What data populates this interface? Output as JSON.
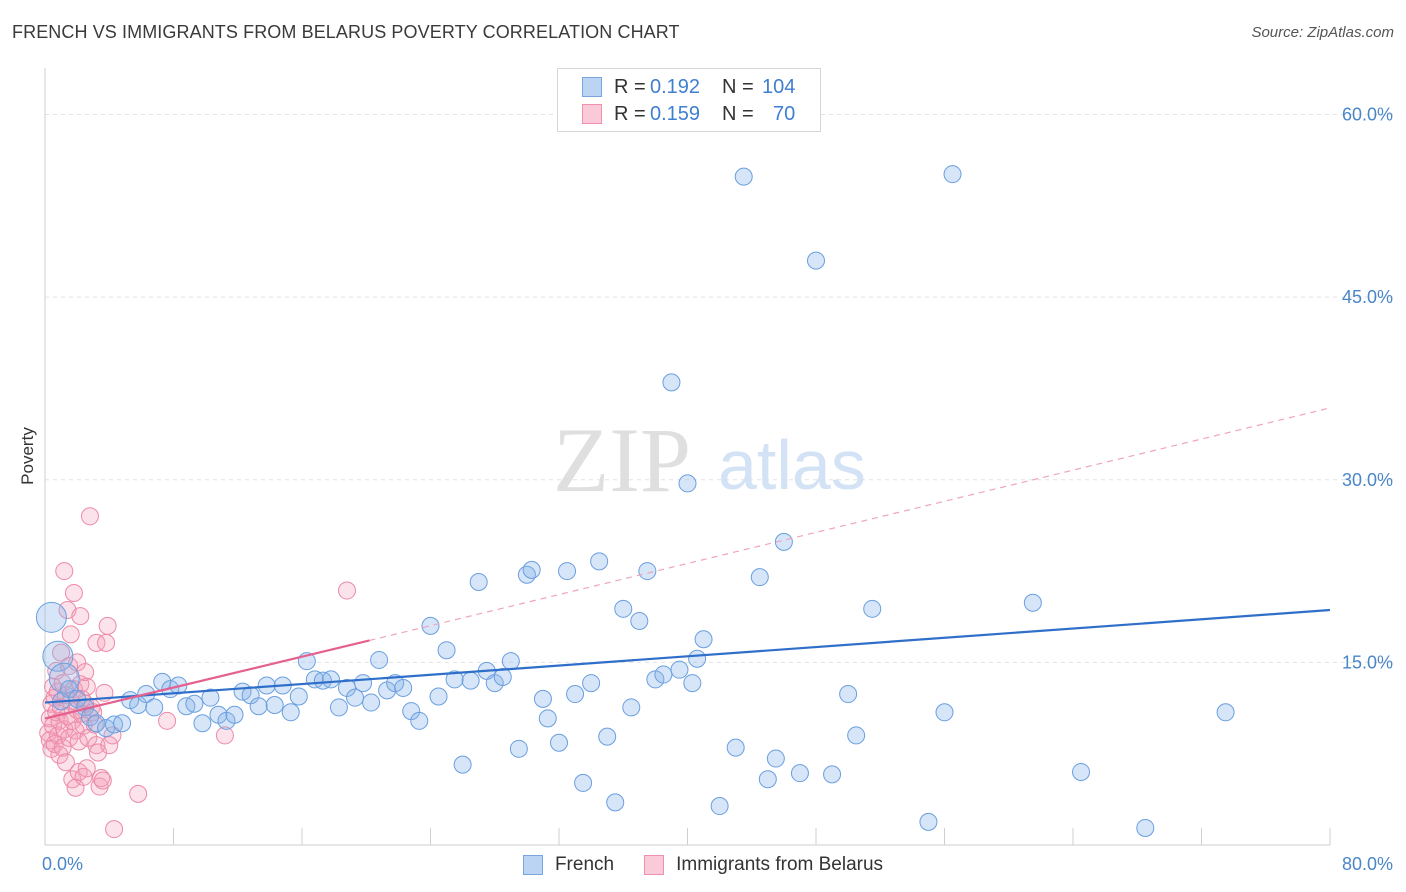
{
  "header": {
    "title": "FRENCH VS IMMIGRANTS FROM BELARUS POVERTY CORRELATION CHART",
    "source": "Source: ZipAtlas.com"
  },
  "watermark": {
    "zip": "ZIP",
    "atlas": "atlas"
  },
  "legend_top": {
    "rows": [
      {
        "r_label": "R =",
        "r_value": "0.192",
        "n_label": "N =",
        "n_value": "104",
        "color": "#8fb8ea"
      },
      {
        "r_label": "R =",
        "r_value": "0.159",
        "n_label": "N =",
        "n_value": "70",
        "color": "#f4a9be"
      }
    ]
  },
  "legend_bottom": {
    "items": [
      {
        "label": "French",
        "color": "#8fb8ea"
      },
      {
        "label": "Immigrants from Belarus",
        "color": "#f4a9be"
      }
    ]
  },
  "colors": {
    "french_fill": "rgba(138,180,232,0.35)",
    "french_stroke": "#6a9fe0",
    "french_line": "#2f6fca",
    "belarus_fill": "rgba(244,160,186,0.3)",
    "belarus_stroke": "#ec8aa8",
    "belarus_line": "#e4608e",
    "tick_text": "#4a86c8"
  },
  "chart_data": {
    "type": "scatter",
    "title": "FRENCH VS IMMIGRANTS FROM BELARUS POVERTY CORRELATION CHART",
    "xlabel": "",
    "ylabel": "Poverty",
    "xlim": [
      0,
      80
    ],
    "ylim": [
      0,
      63
    ],
    "x_tick_labels": [
      {
        "value": 0,
        "label": "0.0%"
      },
      {
        "value": 80,
        "label": "80.0%"
      }
    ],
    "x_minor_ticks": [
      0,
      8,
      16,
      24,
      32,
      40,
      48,
      56,
      64,
      72,
      80
    ],
    "y_ticks": [
      {
        "value": 15,
        "label": "15.0%"
      },
      {
        "value": 30,
        "label": "30.0%"
      },
      {
        "value": 45,
        "label": "45.0%"
      },
      {
        "value": 60,
        "label": "60.0%"
      }
    ],
    "grid": "horizontal dashed",
    "legend_placement": "top-center",
    "series": [
      {
        "name": "French",
        "R": 0.192,
        "N": 104,
        "trend": {
          "x1": 0,
          "y1": 11.7,
          "x2": 80,
          "y2": 19.3,
          "style": "solid"
        },
        "points": [
          [
            0.4,
            18.7
          ],
          [
            0.8,
            15.5
          ],
          [
            1.2,
            13.7
          ],
          [
            1.0,
            11.8
          ],
          [
            1.5,
            12.8
          ],
          [
            2.0,
            12.0
          ],
          [
            2.5,
            11.3
          ],
          [
            2.8,
            10.5
          ],
          [
            3.2,
            10.0
          ],
          [
            3.8,
            9.6
          ],
          [
            4.3,
            9.9
          ],
          [
            4.8,
            10.0
          ],
          [
            5.3,
            11.9
          ],
          [
            5.8,
            11.5
          ],
          [
            6.3,
            12.4
          ],
          [
            6.8,
            11.3
          ],
          [
            7.3,
            13.4
          ],
          [
            7.8,
            12.8
          ],
          [
            8.3,
            13.1
          ],
          [
            8.8,
            11.4
          ],
          [
            9.3,
            11.6
          ],
          [
            9.8,
            10.0
          ],
          [
            10.3,
            12.1
          ],
          [
            10.8,
            10.7
          ],
          [
            11.3,
            10.2
          ],
          [
            11.8,
            10.7
          ],
          [
            12.3,
            12.6
          ],
          [
            12.8,
            12.3
          ],
          [
            13.3,
            11.4
          ],
          [
            13.8,
            13.1
          ],
          [
            14.3,
            11.5
          ],
          [
            14.8,
            13.1
          ],
          [
            15.3,
            10.9
          ],
          [
            15.8,
            12.2
          ],
          [
            16.3,
            15.1
          ],
          [
            16.8,
            13.6
          ],
          [
            17.3,
            13.5
          ],
          [
            17.8,
            13.6
          ],
          [
            18.3,
            11.3
          ],
          [
            18.8,
            12.9
          ],
          [
            19.3,
            12.1
          ],
          [
            19.8,
            13.3
          ],
          [
            20.3,
            11.7
          ],
          [
            20.8,
            15.2
          ],
          [
            21.3,
            12.7
          ],
          [
            21.8,
            13.3
          ],
          [
            22.3,
            12.9
          ],
          [
            22.8,
            11.0
          ],
          [
            23.3,
            10.2
          ],
          [
            24.0,
            18.0
          ],
          [
            24.5,
            12.2
          ],
          [
            25.0,
            16.0
          ],
          [
            25.5,
            13.6
          ],
          [
            26.0,
            6.6
          ],
          [
            26.5,
            13.5
          ],
          [
            27.0,
            21.6
          ],
          [
            27.5,
            14.3
          ],
          [
            28.0,
            13.3
          ],
          [
            28.5,
            13.8
          ],
          [
            29.0,
            15.1
          ],
          [
            29.5,
            7.9
          ],
          [
            30.0,
            22.2
          ],
          [
            30.3,
            22.6
          ],
          [
            31.0,
            12.0
          ],
          [
            31.3,
            10.4
          ],
          [
            32.0,
            8.4
          ],
          [
            32.5,
            22.5
          ],
          [
            33.0,
            12.4
          ],
          [
            33.5,
            5.1
          ],
          [
            34.0,
            13.3
          ],
          [
            34.5,
            23.3
          ],
          [
            35.0,
            8.9
          ],
          [
            35.5,
            3.5
          ],
          [
            36.0,
            19.4
          ],
          [
            36.5,
            11.3
          ],
          [
            37.0,
            18.4
          ],
          [
            37.5,
            22.5
          ],
          [
            38.0,
            13.6
          ],
          [
            38.5,
            14.0
          ],
          [
            39.0,
            38.0
          ],
          [
            39.5,
            14.4
          ],
          [
            40.0,
            29.7
          ],
          [
            40.3,
            13.3
          ],
          [
            40.6,
            15.3
          ],
          [
            41.0,
            16.9
          ],
          [
            42.0,
            3.2
          ],
          [
            43.0,
            8.0
          ],
          [
            43.5,
            54.9
          ],
          [
            44.5,
            22.0
          ],
          [
            45.0,
            5.4
          ],
          [
            45.5,
            7.1
          ],
          [
            46.0,
            24.9
          ],
          [
            47.0,
            5.9
          ],
          [
            48.0,
            48.0
          ],
          [
            49.0,
            5.8
          ],
          [
            50.0,
            12.4
          ],
          [
            50.5,
            9.0
          ],
          [
            51.5,
            19.4
          ],
          [
            55.0,
            1.9
          ],
          [
            56.0,
            10.9
          ],
          [
            56.5,
            55.1
          ],
          [
            61.5,
            19.9
          ],
          [
            64.5,
            6.0
          ],
          [
            68.5,
            1.4
          ],
          [
            73.5,
            10.9
          ]
        ]
      },
      {
        "name": "Immigrants from Belarus",
        "R": 0.159,
        "N": 70,
        "trend": {
          "x1": 0,
          "y1": 10.4,
          "x2": 20.2,
          "y2": 16.8,
          "style": "solid"
        },
        "trend_extension": {
          "x1": 20.2,
          "y1": 16.8,
          "x2": 80,
          "y2": 35.9,
          "style": "dashed"
        },
        "points": [
          [
            0.2,
            9.2
          ],
          [
            0.3,
            10.4
          ],
          [
            0.3,
            8.6
          ],
          [
            0.4,
            11.6
          ],
          [
            0.4,
            7.9
          ],
          [
            0.5,
            13.0
          ],
          [
            0.5,
            9.8
          ],
          [
            0.6,
            12.1
          ],
          [
            0.6,
            8.3
          ],
          [
            0.7,
            14.3
          ],
          [
            0.7,
            10.9
          ],
          [
            0.8,
            9.0
          ],
          [
            0.8,
            12.6
          ],
          [
            0.9,
            7.4
          ],
          [
            0.9,
            10.2
          ],
          [
            1.0,
            15.8
          ],
          [
            1.0,
            11.3
          ],
          [
            1.1,
            8.0
          ],
          [
            1.1,
            13.3
          ],
          [
            1.2,
            9.5
          ],
          [
            1.2,
            22.5
          ],
          [
            1.3,
            12.3
          ],
          [
            1.3,
            6.8
          ],
          [
            1.4,
            10.6
          ],
          [
            1.4,
            19.3
          ],
          [
            1.5,
            14.7
          ],
          [
            1.5,
            8.8
          ],
          [
            1.6,
            11.8
          ],
          [
            1.6,
            17.3
          ],
          [
            1.7,
            10.2
          ],
          [
            1.7,
            5.4
          ],
          [
            1.8,
            12.8
          ],
          [
            1.8,
            20.7
          ],
          [
            1.9,
            9.4
          ],
          [
            1.9,
            4.7
          ],
          [
            2.0,
            11.1
          ],
          [
            2.0,
            15.0
          ],
          [
            2.1,
            8.5
          ],
          [
            2.1,
            6.0
          ],
          [
            2.2,
            13.2
          ],
          [
            2.2,
            18.8
          ],
          [
            2.3,
            10.8
          ],
          [
            2.3,
            12.0
          ],
          [
            2.4,
            9.8
          ],
          [
            2.4,
            5.6
          ],
          [
            2.5,
            11.6
          ],
          [
            2.5,
            14.2
          ],
          [
            2.6,
            6.3
          ],
          [
            2.6,
            13.0
          ],
          [
            2.7,
            8.8
          ],
          [
            2.8,
            27.0
          ],
          [
            2.9,
            11.3
          ],
          [
            3.0,
            10.9
          ],
          [
            3.1,
            9.9
          ],
          [
            3.2,
            8.2
          ],
          [
            3.2,
            16.6
          ],
          [
            3.3,
            7.6
          ],
          [
            3.4,
            4.8
          ],
          [
            3.5,
            5.5
          ],
          [
            3.6,
            5.3
          ],
          [
            3.7,
            12.5
          ],
          [
            3.8,
            16.6
          ],
          [
            3.9,
            18.0
          ],
          [
            4.0,
            8.2
          ],
          [
            4.2,
            9.0
          ],
          [
            4.3,
            1.3
          ],
          [
            5.8,
            4.2
          ],
          [
            7.6,
            10.2
          ],
          [
            18.8,
            20.9
          ],
          [
            11.2,
            9.0
          ]
        ]
      }
    ]
  }
}
